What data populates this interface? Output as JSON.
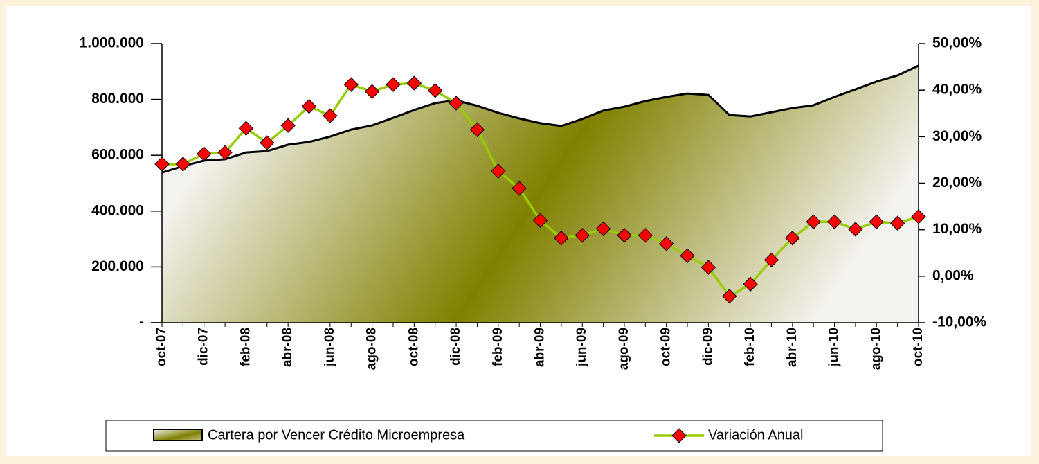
{
  "chart_data": {
    "type": "area-line",
    "categories": [
      "oct-07",
      null,
      "dic-07",
      null,
      "feb-08",
      null,
      "abr-08",
      null,
      "jun-08",
      null,
      "ago-08",
      null,
      "oct-08",
      null,
      "dic-08",
      null,
      "feb-09",
      null,
      "abr-09",
      null,
      "jun-09",
      null,
      "ago-09",
      null,
      "oct-09",
      null,
      "dic-09",
      null,
      "feb-10",
      null,
      "abr-10",
      null,
      "jun-10",
      null,
      "ago-10",
      null,
      "oct-10"
    ],
    "series": [
      {
        "name": "Cartera por Vencer Crédito Microempresa",
        "type": "area",
        "color": "#808000",
        "values": [
          538000,
          561000,
          581000,
          586000,
          610000,
          615000,
          638000,
          648000,
          667000,
          692000,
          707000,
          734000,
          762000,
          787000,
          797000,
          777000,
          752000,
          732000,
          715000,
          705000,
          730000,
          760000,
          774000,
          794000,
          809000,
          821000,
          816000,
          744000,
          739000,
          754000,
          769000,
          779000,
          809000,
          836000,
          864000,
          886000,
          921000
        ]
      },
      {
        "name": "Variación Anual",
        "type": "line",
        "axis": "y2",
        "color": "#99cc00",
        "marker_color": "#ff0000",
        "values": [
          24.1,
          24.1,
          26.3,
          26.6,
          31.8,
          28.7,
          32.4,
          36.5,
          34.5,
          41.2,
          39.7,
          41.2,
          41.5,
          39.9,
          37.2,
          31.5,
          22.6,
          18.9,
          12.0,
          8.2,
          8.8,
          10.2,
          8.8,
          8.8,
          7.0,
          4.4,
          1.9,
          -4.3,
          -1.7,
          3.5,
          8.2,
          11.7,
          11.7,
          10.1,
          11.7,
          11.4,
          12.8
        ]
      }
    ],
    "ylim": [
      0,
      1000000
    ],
    "yticks": [
      {
        "value": 0,
        "label": "-"
      },
      {
        "value": 200000,
        "label": "200.000"
      },
      {
        "value": 400000,
        "label": "400.000"
      },
      {
        "value": 600000,
        "label": "600.000"
      },
      {
        "value": 800000,
        "label": "800.000"
      },
      {
        "value": 1000000,
        "label": "1.000.000"
      }
    ],
    "y2lim": [
      -10,
      50
    ],
    "y2ticks": [
      {
        "value": -10,
        "label": "-10,00%"
      },
      {
        "value": 0,
        "label": "0,00%"
      },
      {
        "value": 10,
        "label": "10,00%"
      },
      {
        "value": 20,
        "label": "20,00%"
      },
      {
        "value": 30,
        "label": "30,00%"
      },
      {
        "value": 40,
        "label": "40,00%"
      },
      {
        "value": 50,
        "label": "50,00%"
      }
    ],
    "grid": false,
    "legend": "bottom"
  }
}
